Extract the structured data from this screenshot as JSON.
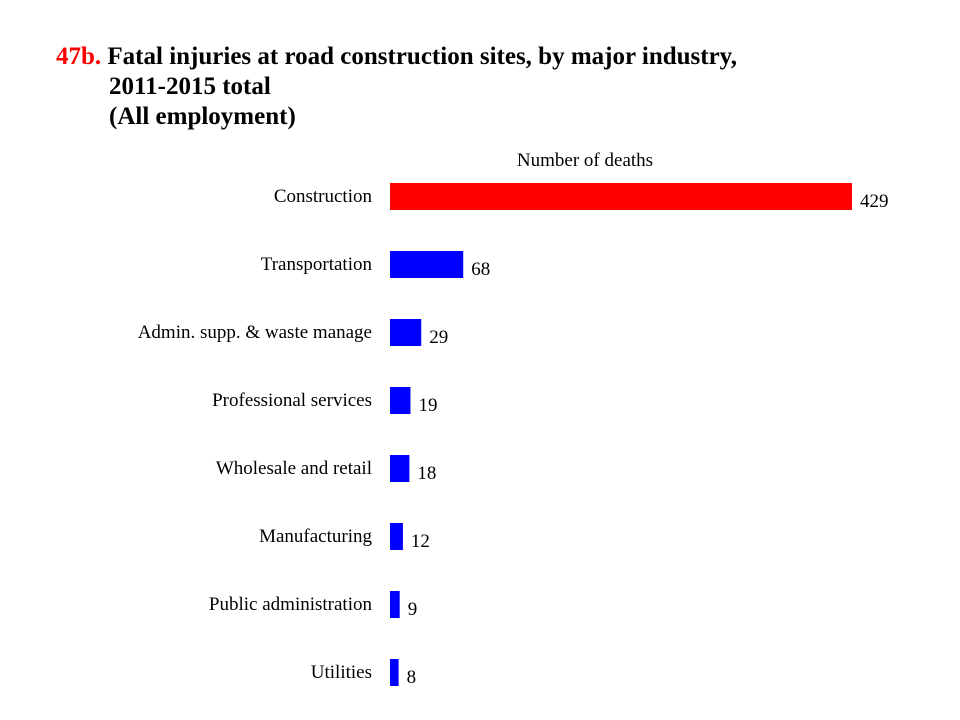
{
  "title": {
    "number": "47b.",
    "line1": "Fatal injuries at road construction sites, by major industry,",
    "line2": "2011-2015 total",
    "line3": "(All employment)"
  },
  "chart_data": {
    "type": "bar",
    "orientation": "horizontal",
    "axis_title": "Number of deaths",
    "categories": [
      "Construction",
      "Transportation",
      "Admin. supp. & waste manage",
      "Professional services",
      "Wholesale and retail",
      "Manufacturing",
      "Public administration",
      "Utilities"
    ],
    "values": [
      429,
      68,
      29,
      19,
      18,
      12,
      9,
      8
    ],
    "data_labels": [
      "429",
      "68",
      "29",
      "19",
      "18",
      "12",
      "9",
      "8"
    ],
    "bar_colors": [
      "#ff0000",
      "#0000ff",
      "#0000ff",
      "#0000ff",
      "#0000ff",
      "#0000ff",
      "#0000ff",
      "#0000ff"
    ],
    "xlim": [
      0,
      429
    ],
    "grid": false,
    "legend": "none"
  }
}
